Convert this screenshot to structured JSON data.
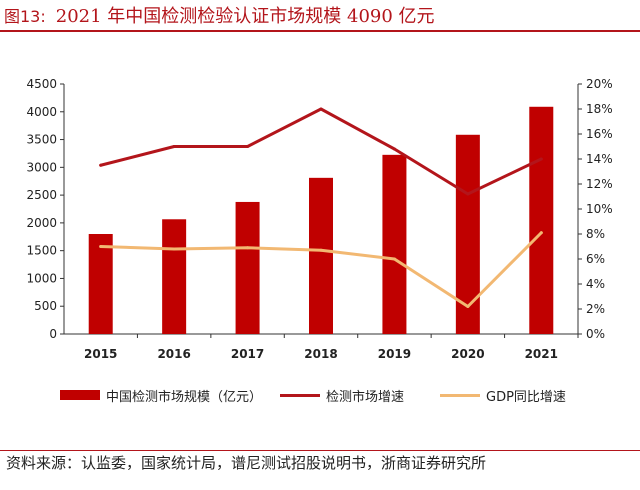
{
  "figure": {
    "label": "图13:",
    "title": "2021 年中国检测检验认证市场规模 4090 亿元"
  },
  "source": "资料来源：认监委，国家统计局，谱尼测试招股说明书，浙商证券研究所",
  "colors": {
    "bar": "#c00000",
    "line_growth": "#b3151b",
    "line_gdp": "#f2b872",
    "title": "#b3151b",
    "axis": "#333333"
  },
  "chart_data": {
    "type": "bar",
    "categories": [
      "2015",
      "2016",
      "2017",
      "2018",
      "2019",
      "2020",
      "2021"
    ],
    "series": [
      {
        "name": "中国检测市场规模（亿元）",
        "type": "bar",
        "axis": "left",
        "values": [
          1800,
          2065,
          2377,
          2811,
          3225,
          3586,
          4090
        ]
      },
      {
        "name": "检测市场增速",
        "type": "line",
        "axis": "right",
        "values": [
          13.5,
          15.0,
          15.0,
          18.0,
          14.8,
          11.2,
          14.0
        ]
      },
      {
        "name": "GDP同比增速",
        "type": "line",
        "axis": "right",
        "values": [
          7.0,
          6.8,
          6.9,
          6.7,
          6.0,
          2.2,
          8.1
        ]
      }
    ],
    "y_left": {
      "ylim": [
        0,
        4500
      ],
      "ticks": [
        "0",
        "500",
        "1000",
        "1500",
        "2000",
        "2500",
        "3000",
        "3500",
        "4000",
        "4500"
      ]
    },
    "y_right": {
      "ylim": [
        0,
        20
      ],
      "ticks": [
        "0%",
        "2%",
        "4%",
        "6%",
        "8%",
        "10%",
        "12%",
        "14%",
        "16%",
        "18%",
        "20%"
      ]
    },
    "legend": "bottom",
    "grid": false
  }
}
